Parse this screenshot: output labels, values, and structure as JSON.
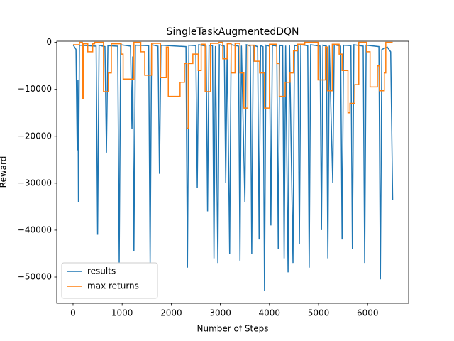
{
  "chart_data": {
    "type": "line",
    "title": "SingleTaskAugmentedDQN",
    "x_label": "Number of Steps",
    "y_label": "Reward",
    "xlim": [
      -332,
      6835
    ],
    "ylim": [
      -55600,
      250
    ],
    "xticks": [
      0,
      1000,
      2000,
      3000,
      4000,
      5000,
      6000
    ],
    "yticks": [
      {
        "value": -50000,
        "label": "−50000"
      },
      {
        "value": -40000,
        "label": "−40000"
      },
      {
        "value": -30000,
        "label": "−30000"
      },
      {
        "value": -20000,
        "label": "−20000"
      },
      {
        "value": -10000,
        "label": "−10000"
      },
      0
    ],
    "legend": "lower left",
    "grid": false,
    "series": [
      {
        "name": "results",
        "color": "#1f77b4",
        "x": [
          0,
          60,
          85,
          100,
          110,
          130,
          470,
          500,
          530,
          650,
          680,
          710,
          910,
          940,
          970,
          1170,
          1200,
          1215,
          1240,
          1270,
          1540,
          1570,
          1600,
          1730,
          1760,
          1790,
          2300,
          2330,
          2360,
          2500,
          2530,
          2560,
          2710,
          2740,
          2770,
          2840,
          2870,
          2900,
          2950,
          2980,
          3080,
          3110,
          3140,
          3190,
          3220,
          3370,
          3400,
          3430,
          3500,
          3530,
          3610,
          3640,
          3670,
          3760,
          3790,
          3820,
          3870,
          3900,
          3930,
          4000,
          4030,
          4060,
          4150,
          4180,
          4210,
          4270,
          4300,
          4330,
          4380,
          4410,
          4480,
          4510,
          4580,
          4610,
          4640,
          4780,
          4810,
          4840,
          5030,
          5060,
          5090,
          5160,
          5190,
          5220,
          5290,
          5320,
          5450,
          5480,
          5510,
          5660,
          5690,
          5720,
          5910,
          5940,
          5970,
          6230,
          6260,
          6290,
          6400,
          6470,
          6510
        ],
        "values": [
          -500,
          -1500,
          -23000,
          -8000,
          -34000,
          -600,
          -800,
          -41000,
          -600,
          -900,
          -23500,
          -700,
          -800,
          -47000,
          -500,
          -800,
          -18500,
          -3000,
          -44500,
          -600,
          -700,
          -47000,
          -500,
          -800,
          -28000,
          -600,
          -900,
          -48000,
          -600,
          -700,
          -31000,
          -500,
          -800,
          -36000,
          -600,
          -700,
          -46000,
          -800,
          -47000,
          -500,
          -800,
          -30000,
          -600,
          -45000,
          -500,
          -800,
          -46500,
          -700,
          -34000,
          -500,
          -800,
          -45000,
          -600,
          -900,
          -42000,
          -700,
          -900,
          -53000,
          -600,
          -800,
          -39000,
          -600,
          -800,
          -44000,
          -600,
          -700,
          -46000,
          -700,
          -49000,
          -600,
          -47000,
          -600,
          -800,
          -43000,
          -500,
          -700,
          -48000,
          -500,
          -800,
          -40000,
          -600,
          -800,
          -46000,
          -700,
          -30000,
          -500,
          -800,
          -42000,
          -600,
          -700,
          -44000,
          -500,
          -800,
          -47000,
          -600,
          -900,
          -50500,
          -1500,
          -1000,
          -2000,
          -33600
        ]
      },
      {
        "name": "max returns",
        "color": "#ff7f0e",
        "x": [
          0,
          130,
          130,
          190,
          190,
          210,
          210,
          300,
          300,
          400,
          400,
          440,
          440,
          620,
          620,
          720,
          720,
          780,
          780,
          980,
          980,
          1020,
          1020,
          1240,
          1240,
          1380,
          1380,
          1460,
          1460,
          1600,
          1600,
          1780,
          1780,
          1900,
          1900,
          1940,
          1940,
          2180,
          2180,
          2270,
          2270,
          2320,
          2320,
          2350,
          2350,
          2440,
          2440,
          2550,
          2550,
          2610,
          2610,
          2690,
          2690,
          2800,
          2800,
          2960,
          2960,
          3050,
          3050,
          3140,
          3140,
          3220,
          3220,
          3300,
          3300,
          3400,
          3400,
          3480,
          3480,
          3560,
          3560,
          3690,
          3690,
          3800,
          3800,
          3900,
          3900,
          4000,
          4000,
          4150,
          4150,
          4200,
          4200,
          4320,
          4320,
          4420,
          4420,
          4490,
          4490,
          4570,
          4570,
          4720,
          4720,
          4990,
          4990,
          5140,
          5140,
          5180,
          5180,
          5280,
          5280,
          5420,
          5420,
          5480,
          5480,
          5600,
          5600,
          5640,
          5640,
          5740,
          5740,
          5820,
          5820,
          5980,
          5980,
          6050,
          6050,
          6200,
          6200,
          6240,
          6240,
          6340,
          6340,
          6370,
          6370,
          6510
        ],
        "values": [
          -500,
          -500,
          0,
          0,
          -12000,
          -12000,
          -300,
          -300,
          -2000,
          -2000,
          -300,
          -300,
          0,
          0,
          -10500,
          -10500,
          -6500,
          -6500,
          -300,
          -300,
          -2500,
          -2500,
          -7800,
          -7800,
          0,
          0,
          -2000,
          -2000,
          -7000,
          -7000,
          -200,
          -200,
          -7500,
          -7500,
          -1000,
          -1000,
          -11500,
          -11500,
          -8500,
          -8500,
          -4500,
          -4500,
          -18300,
          -18300,
          -4500,
          -4500,
          -2500,
          -2500,
          -6000,
          -6000,
          -400,
          -400,
          -10500,
          -10500,
          -200,
          -200,
          0,
          0,
          -3500,
          -3500,
          -300,
          -300,
          -6500,
          -6500,
          -200,
          -200,
          -6500,
          -6500,
          -14000,
          -14000,
          -600,
          -600,
          -4000,
          -4000,
          -6500,
          -6500,
          -14000,
          -14000,
          -400,
          -400,
          -4500,
          -4500,
          -11500,
          -11500,
          -8500,
          -8500,
          -6500,
          -6500,
          -1800,
          -1800,
          -400,
          -400,
          0,
          0,
          -8000,
          -8000,
          -1000,
          -1000,
          -10300,
          -10300,
          -400,
          -400,
          -2500,
          -2500,
          -6000,
          -6000,
          -15000,
          -15000,
          -13000,
          -13000,
          -9000,
          -9000,
          0,
          0,
          -2000,
          -2000,
          -9500,
          -9500,
          -5000,
          -5000,
          -10300,
          -10300,
          -6500,
          -6500,
          0,
          0
        ]
      }
    ]
  }
}
